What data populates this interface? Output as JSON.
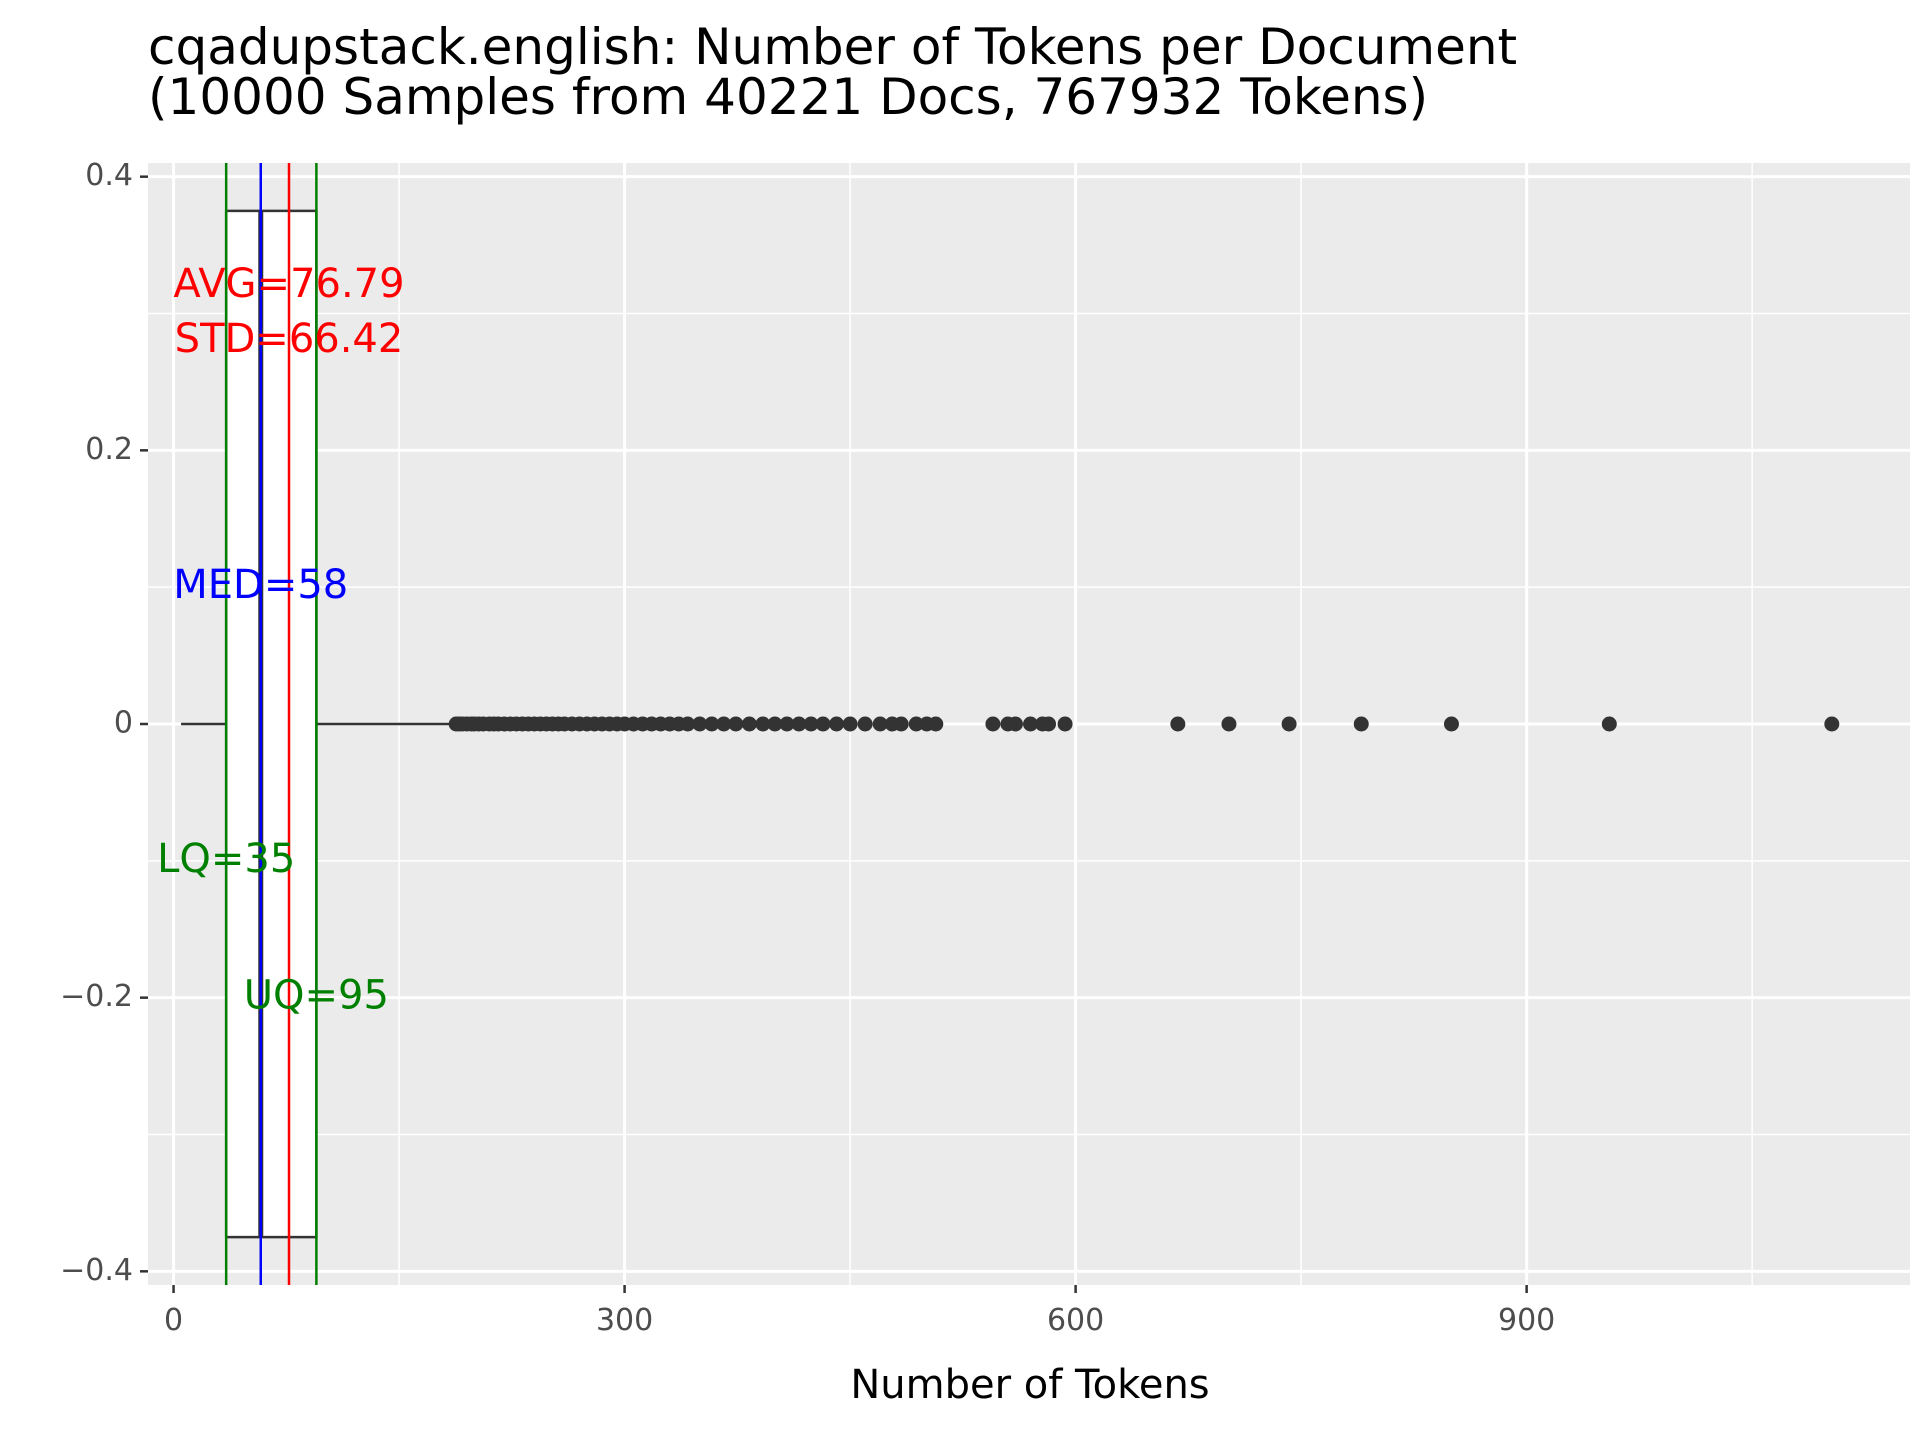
{
  "chart_data": {
    "type": "boxplot",
    "title": "cqadupstack.english: Number of Tokens per Document",
    "subtitle": "(10000 Samples from 40221 Docs, 767932 Tokens)",
    "xlabel": "Number of Tokens",
    "ylabel": "",
    "xlim": [
      -17,
      1155
    ],
    "ylim": [
      -0.41,
      0.41
    ],
    "x_ticks": [
      0,
      300,
      600,
      900
    ],
    "x_tick_labels": [
      "0",
      "300",
      "600",
      "900"
    ],
    "y_ticks": [
      -0.4,
      -0.2,
      0,
      0.2,
      0.4
    ],
    "y_tick_labels": [
      "−0.4",
      "−0.2",
      "0",
      "0.2",
      "0.4"
    ],
    "grid": true,
    "box": {
      "whisker_low": 5,
      "lower_quartile": 35,
      "median": 58,
      "upper_quartile": 95,
      "whisker_high": 185,
      "y_top": 0.375,
      "y_bottom": -0.375
    },
    "reference_lines": [
      {
        "name": "LQ",
        "x": 35,
        "color": "#008000"
      },
      {
        "name": "MED",
        "x": 58,
        "color": "#0000ff"
      },
      {
        "name": "AVG",
        "x": 76.79,
        "color": "#ff0000"
      },
      {
        "name": "UQ",
        "x": 95,
        "color": "#008000"
      }
    ],
    "annotations": [
      {
        "text": "AVG=76.79",
        "x": 76.79,
        "y": 0.32,
        "color": "#ff0000"
      },
      {
        "text": "STD=66.42",
        "x": 76.79,
        "y": 0.28,
        "color": "#ff0000"
      },
      {
        "text": "MED=58",
        "x": 58,
        "y": 0.1,
        "color": "#0000ff"
      },
      {
        "text": "LQ=35",
        "x": 35,
        "y": -0.1,
        "color": "#008000"
      },
      {
        "text": "UQ=95",
        "x": 95,
        "y": -0.2,
        "color": "#008000"
      }
    ],
    "outliers": [
      188,
      190,
      192,
      195,
      198,
      200,
      203,
      206,
      210,
      213,
      216,
      220,
      224,
      228,
      232,
      236,
      240,
      244,
      248,
      252,
      256,
      260,
      265,
      270,
      275,
      280,
      285,
      290,
      295,
      300,
      306,
      312,
      318,
      324,
      330,
      336,
      342,
      350,
      358,
      366,
      374,
      383,
      392,
      400,
      408,
      416,
      424,
      432,
      441,
      450,
      460,
      470,
      478,
      484,
      494,
      501,
      507,
      545,
      555,
      560,
      570,
      578,
      582,
      593,
      668,
      702,
      742,
      790,
      850,
      955,
      1103
    ],
    "colors": {
      "panel": "#ebebeb",
      "grid": "#ffffff",
      "box_outline": "#333333",
      "outlier": "#333333",
      "axis_text": "#4d4d4d"
    }
  }
}
